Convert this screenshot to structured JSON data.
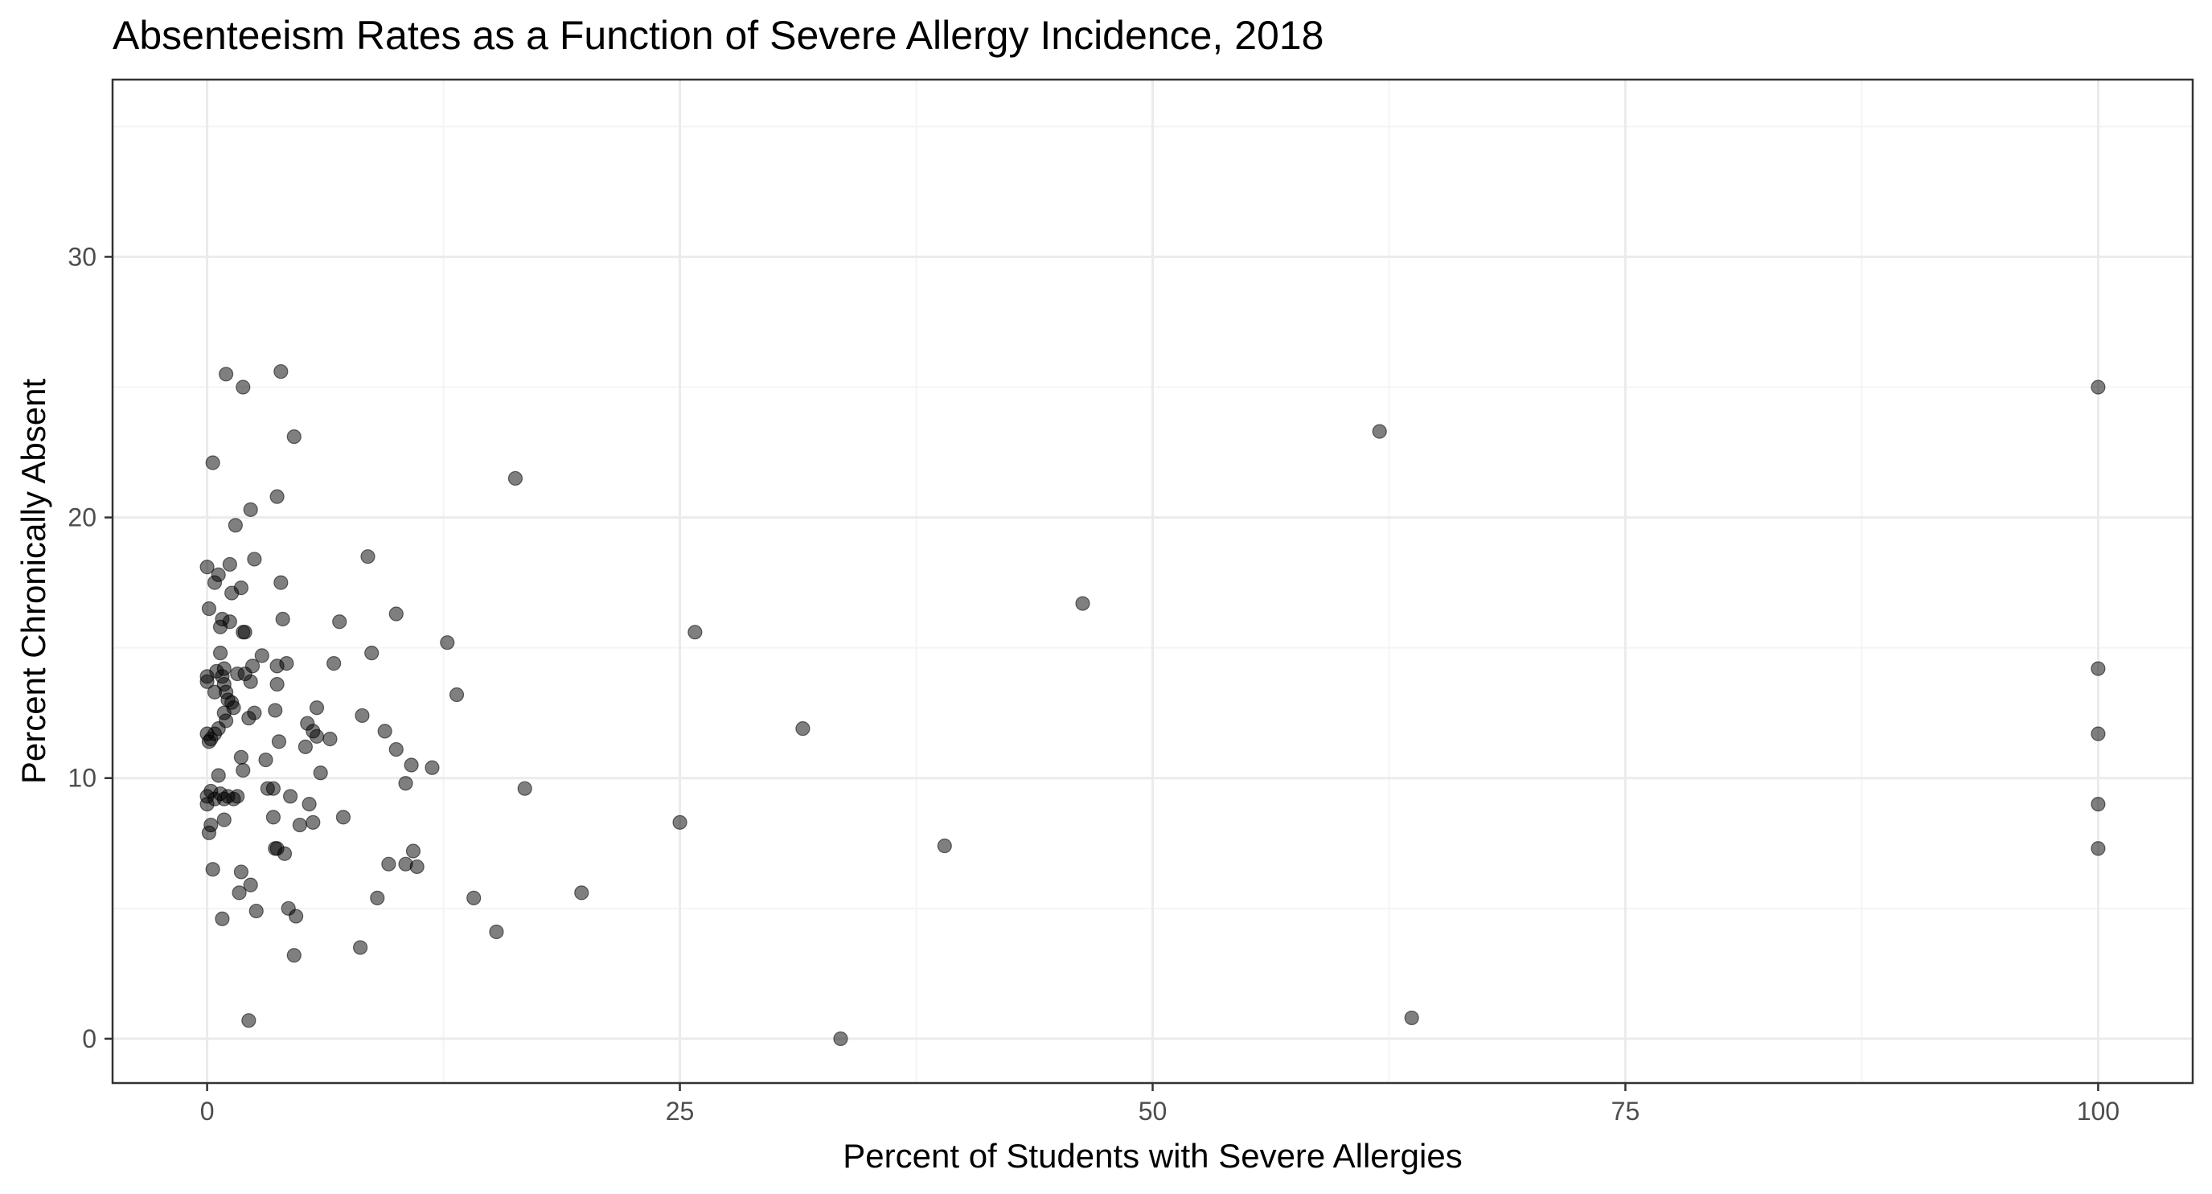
{
  "chart_data": {
    "type": "scatter",
    "title": "Absenteeism Rates as a Function of Severe Allergy Incidence, 2018",
    "xlabel": "Percent of Students with Severe Allergies",
    "ylabel": "Percent Chronically Absent",
    "xlim": [
      -5,
      105
    ],
    "ylim": [
      -1.7,
      36.8
    ],
    "x_ticks": [
      0,
      25,
      50,
      75,
      100
    ],
    "y_ticks": [
      0,
      10,
      20,
      30
    ],
    "grid": true,
    "legend": "none",
    "colors": {
      "point": "#000000",
      "point_opacity": 0.5,
      "grid_major": "#ebebeb",
      "grid_minor": "#f4f4f4",
      "panel_border": "#333333"
    },
    "points": [
      [
        0.0,
        18.1
      ],
      [
        0.1,
        16.5
      ],
      [
        0.4,
        17.5
      ],
      [
        0.6,
        17.8
      ],
      [
        0.3,
        22.1
      ],
      [
        1.0,
        25.5
      ],
      [
        1.9,
        25.0
      ],
      [
        3.9,
        25.6
      ],
      [
        4.6,
        23.1
      ],
      [
        3.7,
        20.8
      ],
      [
        2.3,
        20.3
      ],
      [
        1.5,
        19.7
      ],
      [
        2.5,
        18.4
      ],
      [
        1.2,
        18.2
      ],
      [
        3.9,
        17.5
      ],
      [
        1.8,
        17.3
      ],
      [
        1.3,
        17.1
      ],
      [
        0.8,
        16.1
      ],
      [
        1.2,
        16.0
      ],
      [
        0.7,
        15.8
      ],
      [
        1.9,
        15.6
      ],
      [
        2.0,
        15.6
      ],
      [
        4.0,
        16.1
      ],
      [
        0.7,
        14.8
      ],
      [
        0.9,
        14.2
      ],
      [
        0.5,
        14.1
      ],
      [
        0.0,
        13.9
      ],
      [
        0.0,
        13.7
      ],
      [
        0.8,
        13.9
      ],
      [
        0.9,
        13.6
      ],
      [
        1.0,
        13.3
      ],
      [
        0.4,
        13.3
      ],
      [
        1.1,
        13.0
      ],
      [
        1.3,
        12.9
      ],
      [
        1.4,
        12.7
      ],
      [
        0.9,
        12.5
      ],
      [
        1.0,
        12.2
      ],
      [
        0.6,
        11.9
      ],
      [
        0.4,
        11.7
      ],
      [
        0.0,
        11.7
      ],
      [
        0.2,
        11.5
      ],
      [
        0.1,
        11.4
      ],
      [
        1.6,
        14.0
      ],
      [
        2.0,
        14.0
      ],
      [
        2.3,
        13.7
      ],
      [
        2.4,
        14.3
      ],
      [
        2.9,
        14.7
      ],
      [
        3.7,
        14.3
      ],
      [
        4.2,
        14.4
      ],
      [
        3.7,
        13.6
      ],
      [
        3.6,
        12.6
      ],
      [
        2.5,
        12.5
      ],
      [
        2.2,
        12.3
      ],
      [
        1.8,
        10.8
      ],
      [
        1.9,
        10.3
      ],
      [
        0.6,
        10.1
      ],
      [
        0.2,
        9.5
      ],
      [
        0.0,
        9.3
      ],
      [
        0.0,
        9.0
      ],
      [
        0.4,
        9.2
      ],
      [
        0.7,
        9.4
      ],
      [
        0.9,
        9.2
      ],
      [
        1.1,
        9.3
      ],
      [
        1.4,
        9.2
      ],
      [
        1.6,
        9.3
      ],
      [
        0.9,
        8.4
      ],
      [
        0.2,
        8.2
      ],
      [
        0.1,
        7.9
      ],
      [
        0.3,
        6.5
      ],
      [
        3.1,
        10.7
      ],
      [
        3.2,
        9.6
      ],
      [
        3.5,
        9.6
      ],
      [
        3.8,
        11.4
      ],
      [
        4.4,
        9.3
      ],
      [
        3.5,
        8.5
      ],
      [
        3.6,
        7.3
      ],
      [
        3.7,
        7.3
      ],
      [
        4.1,
        7.1
      ],
      [
        1.8,
        6.4
      ],
      [
        2.3,
        5.9
      ],
      [
        1.7,
        5.6
      ],
      [
        0.8,
        4.6
      ],
      [
        2.6,
        4.9
      ],
      [
        4.3,
        5.0
      ],
      [
        4.7,
        4.7
      ],
      [
        4.6,
        3.2
      ],
      [
        2.2,
        0.7
      ],
      [
        5.6,
        11.8
      ],
      [
        5.8,
        11.6
      ],
      [
        5.2,
        11.2
      ],
      [
        5.3,
        12.1
      ],
      [
        5.8,
        12.7
      ],
      [
        6.5,
        11.5
      ],
      [
        6.0,
        10.2
      ],
      [
        5.4,
        9.0
      ],
      [
        4.9,
        8.2
      ],
      [
        5.6,
        8.3
      ],
      [
        7.2,
        8.5
      ],
      [
        6.7,
        14.4
      ],
      [
        7.0,
        16.0
      ],
      [
        8.5,
        18.5
      ],
      [
        8.2,
        12.4
      ],
      [
        8.7,
        14.8
      ],
      [
        10.0,
        16.3
      ],
      [
        9.4,
        11.8
      ],
      [
        10.0,
        11.1
      ],
      [
        10.8,
        10.5
      ],
      [
        10.5,
        9.8
      ],
      [
        9.6,
        6.7
      ],
      [
        10.5,
        6.7
      ],
      [
        10.9,
        7.2
      ],
      [
        11.1,
        6.6
      ],
      [
        9.0,
        5.4
      ],
      [
        8.1,
        3.5
      ],
      [
        11.9,
        10.4
      ],
      [
        12.7,
        15.2
      ],
      [
        13.2,
        13.2
      ],
      [
        14.1,
        5.4
      ],
      [
        15.3,
        4.1
      ],
      [
        16.3,
        21.5
      ],
      [
        16.8,
        9.6
      ],
      [
        19.8,
        5.6
      ],
      [
        25.0,
        8.3
      ],
      [
        25.8,
        15.6
      ],
      [
        31.5,
        11.9
      ],
      [
        33.5,
        0.0
      ],
      [
        39.0,
        7.4
      ],
      [
        46.3,
        16.7
      ],
      [
        62.0,
        23.3
      ],
      [
        63.7,
        0.8
      ],
      [
        100.0,
        25.0
      ],
      [
        100.0,
        14.2
      ],
      [
        100.0,
        11.7
      ],
      [
        100.0,
        9.0
      ],
      [
        100.0,
        7.3
      ]
    ]
  }
}
